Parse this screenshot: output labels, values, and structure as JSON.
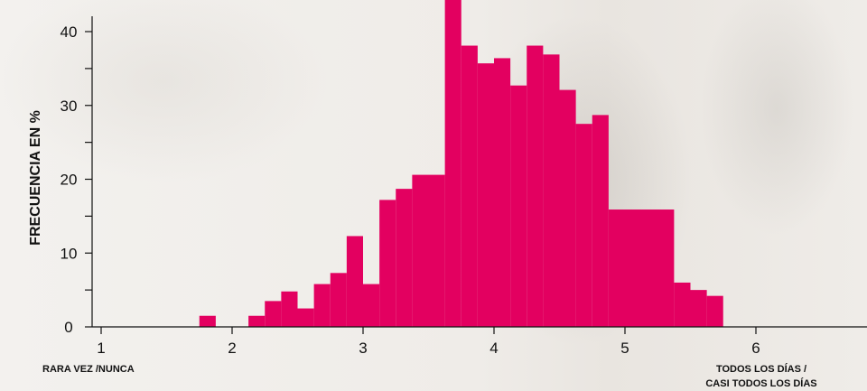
{
  "chart_data": {
    "type": "bar",
    "title": "",
    "xlabel": "",
    "ylabel": "FRECUENCIA EN %",
    "xlim": [
      1,
      6.9
    ],
    "ylim": [
      0,
      43
    ],
    "x_ticks": [
      1,
      2,
      3,
      4,
      5,
      6
    ],
    "y_ticks": [
      0,
      10,
      20,
      30,
      40
    ],
    "x_end_labels": {
      "left": "RARA VEZ /NUNCA",
      "right_line1": "TODOS LOS DÍAS /",
      "right_line2": "CASI TODOS LOS DÍAS"
    },
    "bin_width": 0.125,
    "bins_start": [
      1.75,
      2.125,
      2.25,
      2.375,
      2.5,
      2.625,
      2.75,
      2.875,
      3.0,
      3.125,
      3.25,
      3.375,
      3.5,
      3.625,
      3.75,
      3.875,
      4.0,
      4.125,
      4.25,
      4.375,
      4.5,
      4.625,
      4.75,
      4.875,
      5.0,
      5.375,
      5.5,
      5.625
    ],
    "bins_end": [
      1.875,
      2.25,
      2.375,
      2.5,
      2.625,
      2.75,
      2.875,
      3.0,
      3.125,
      3.25,
      3.375,
      3.5,
      3.625,
      3.75,
      3.875,
      4.0,
      4.125,
      4.25,
      4.375,
      4.5,
      4.625,
      4.75,
      4.875,
      5.0,
      5.375,
      5.5,
      5.625,
      5.75
    ],
    "values": [
      1.5,
      1.5,
      3.5,
      4.8,
      2.5,
      5.8,
      7.3,
      12.3,
      5.8,
      17.2,
      18.7,
      20.6,
      20.6,
      44.5,
      38.1,
      35.7,
      36.4,
      32.7,
      38.1,
      36.9,
      32.1,
      27.5,
      28.7,
      15.9,
      15.9,
      6.0,
      5.0,
      4.2
    ],
    "bar_color": "#e30060",
    "grid": false
  }
}
